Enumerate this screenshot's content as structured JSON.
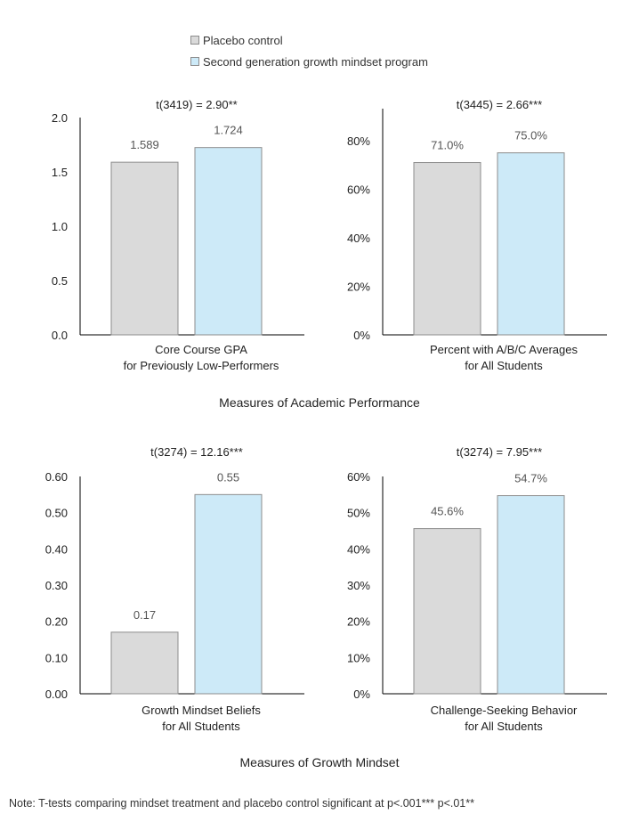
{
  "legend": {
    "items": [
      {
        "label": "Placebo control",
        "color": "#dadada"
      },
      {
        "label": "Second generation growth mindset program",
        "color": "#cdeaf8"
      }
    ]
  },
  "sections": {
    "academic": "Measures of Academic Performance",
    "mindset": "Measures of Growth Mindset"
  },
  "note": "Note: T-tests comparing mindset treatment and placebo control significant at p<.001*** p<.01**",
  "chart_data": [
    {
      "type": "bar",
      "title": "t(3419) = 2.90**",
      "xlabel": [
        "Core Course GPA",
        "for Previously Low-Performers"
      ],
      "series": [
        {
          "name": "Placebo control",
          "value": 1.589,
          "label": "1.589"
        },
        {
          "name": "Second generation growth mindset program",
          "value": 1.724,
          "label": "1.724"
        }
      ],
      "ylim": [
        0,
        2
      ],
      "ticks": [
        0,
        0.5,
        1.0,
        1.5,
        2.0
      ],
      "tick_labels": [
        "0.0",
        "0.5",
        "1.0",
        "1.5",
        "2.0"
      ]
    },
    {
      "type": "bar",
      "title": "t(3445) = 2.66***",
      "xlabel": [
        "Percent with A/B/C Averages",
        "for All Students"
      ],
      "series": [
        {
          "name": "Placebo control",
          "value": 71.0,
          "label": "71.0%"
        },
        {
          "name": "Second generation growth mindset program",
          "value": 75.0,
          "label": "75.0%"
        }
      ],
      "ylim": [
        0,
        90
      ],
      "ticks": [
        0,
        20,
        40,
        60,
        80
      ],
      "tick_labels": [
        "0%",
        "20%",
        "40%",
        "60%",
        "80%"
      ]
    },
    {
      "type": "bar",
      "title": "t(3274) = 12.16***",
      "xlabel": [
        "Growth Mindset Beliefs",
        "for All Students"
      ],
      "series": [
        {
          "name": "Placebo control",
          "value": 0.17,
          "label": "0.17"
        },
        {
          "name": "Second generation growth mindset program",
          "value": 0.55,
          "label": "0.55"
        }
      ],
      "ylim": [
        0,
        0.6
      ],
      "ticks": [
        0,
        0.1,
        0.2,
        0.3,
        0.4,
        0.5,
        0.6
      ],
      "tick_labels": [
        "0.00",
        "0.10",
        "0.20",
        "0.30",
        "0.40",
        "0.50",
        "0.60"
      ]
    },
    {
      "type": "bar",
      "title": "t(3274) = 7.95***",
      "xlabel": [
        "Challenge-Seeking Behavior",
        "for All Students"
      ],
      "series": [
        {
          "name": "Placebo control",
          "value": 45.6,
          "label": "45.6%"
        },
        {
          "name": "Second generation growth mindset program",
          "value": 54.7,
          "label": "54.7%"
        }
      ],
      "ylim": [
        0,
        60
      ],
      "ticks": [
        0,
        10,
        20,
        30,
        40,
        50,
        60
      ],
      "tick_labels": [
        "0%",
        "10%",
        "20%",
        "30%",
        "40%",
        "50%",
        "60%"
      ]
    }
  ]
}
